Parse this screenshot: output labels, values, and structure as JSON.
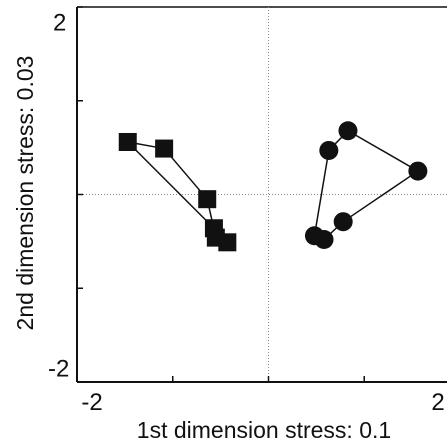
{
  "chart_data": {
    "type": "scatter",
    "xlabel": "1st dimension stress: 0.1",
    "ylabel": "2nd dimension stress: 0.03",
    "xlim": [
      -2,
      2
    ],
    "ylim": [
      -2,
      2
    ],
    "xticks": [
      "-2",
      "2"
    ],
    "yticks": [
      "2",
      "-2"
    ],
    "reference_lines": {
      "x": 0,
      "y": 0,
      "style": "dotted"
    },
    "series": [
      {
        "marker": "square",
        "color": "#111111",
        "points": [
          {
            "x": -1.47,
            "y": 0.56
          },
          {
            "x": -1.09,
            "y": 0.49
          },
          {
            "x": -0.64,
            "y": -0.05
          },
          {
            "x": -0.55,
            "y": -0.46
          },
          {
            "x": -0.43,
            "y": -0.51
          },
          {
            "x": -0.57,
            "y": -0.36
          }
        ],
        "connections": [
          [
            0,
            1
          ],
          [
            1,
            2
          ],
          [
            2,
            3
          ],
          [
            0,
            5
          ]
        ]
      },
      {
        "marker": "circle",
        "color": "#111111",
        "points": [
          {
            "x": 0.83,
            "y": 0.68
          },
          {
            "x": 0.63,
            "y": 0.47
          },
          {
            "x": 0.48,
            "y": -0.44
          },
          {
            "x": 0.58,
            "y": -0.48
          },
          {
            "x": 0.78,
            "y": -0.29
          },
          {
            "x": 1.56,
            "y": 0.25
          }
        ],
        "connections": [
          [
            0,
            1
          ],
          [
            1,
            2
          ],
          [
            2,
            3
          ],
          [
            3,
            4
          ],
          [
            4,
            5
          ],
          [
            5,
            0
          ]
        ]
      }
    ]
  }
}
